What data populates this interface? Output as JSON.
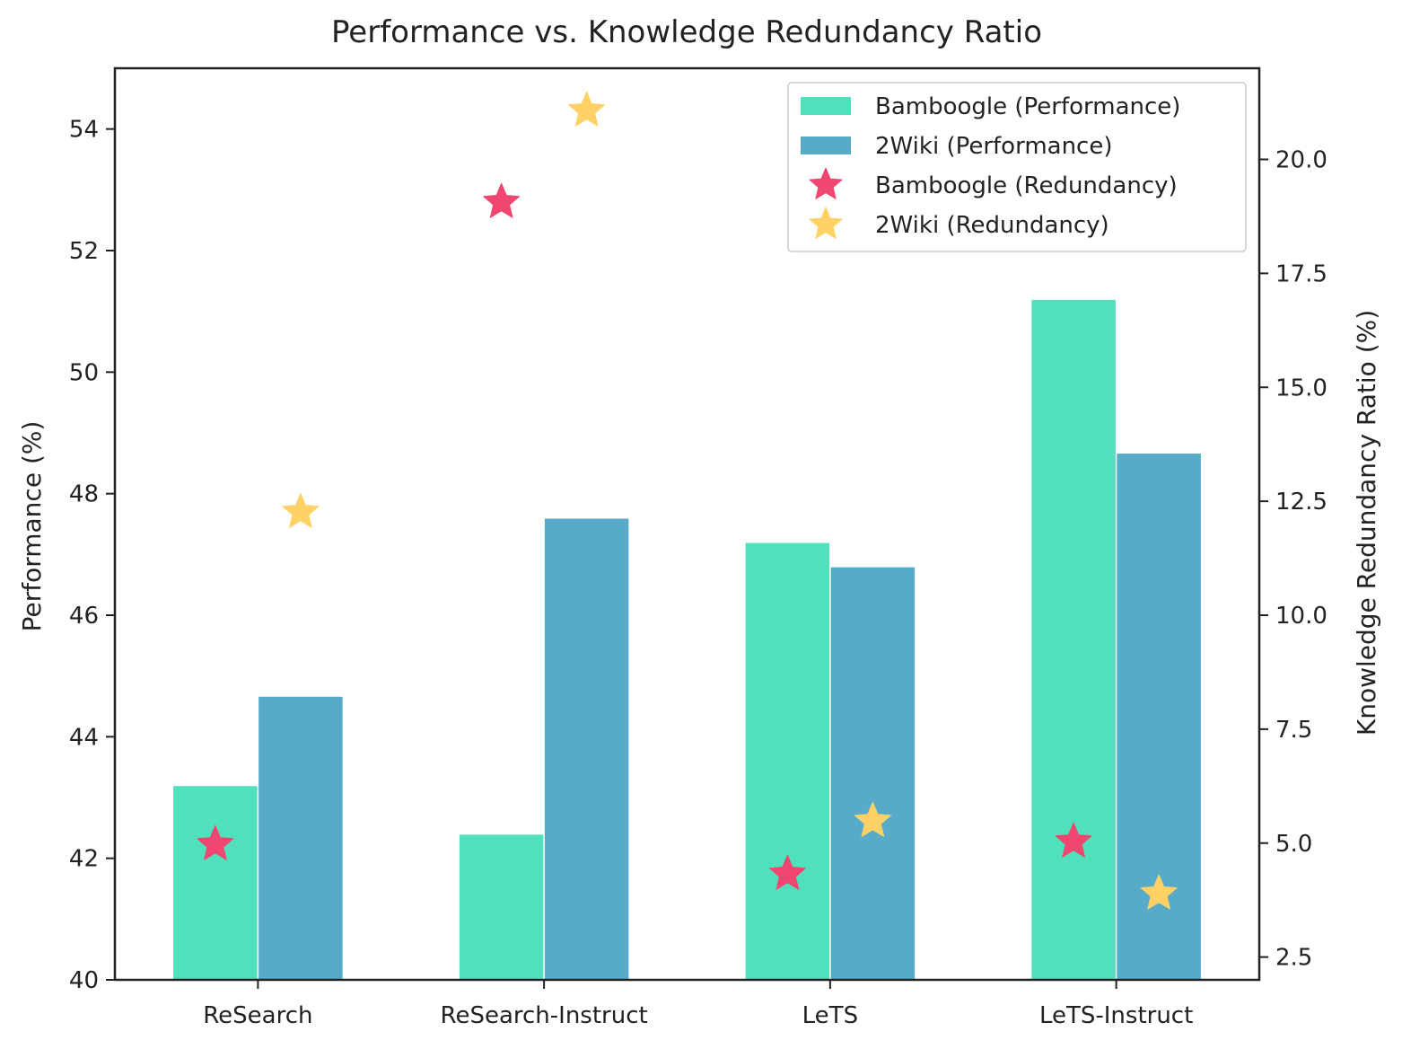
{
  "chart_data": {
    "type": "bar",
    "title": "Performance vs. Knowledge Redundancy Ratio",
    "categories": [
      "ReSearch",
      "ReSearch-Instruct",
      "LeTS",
      "LeTS-Instruct"
    ],
    "ylabel": "Performance (%)",
    "y2label": "Knowledge Redundancy Ratio (%)",
    "ylim": [
      40,
      55
    ],
    "y2lim": [
      2,
      22
    ],
    "yticks": [
      "40",
      "42",
      "44",
      "46",
      "48",
      "50",
      "52",
      "54"
    ],
    "y2ticks": [
      "2.5",
      "5.0",
      "7.5",
      "10.0",
      "12.5",
      "15.0",
      "17.5",
      "20.0"
    ],
    "grid": false,
    "legend_position": "top-right",
    "series": [
      {
        "name": "Bamboogle (Performance)",
        "kind": "bar",
        "axis": "left",
        "color": "#50e0bc",
        "values": [
          43.2,
          42.4,
          47.2,
          51.2
        ]
      },
      {
        "name": "2Wiki (Performance)",
        "kind": "bar",
        "axis": "left",
        "color": "#58abc8",
        "values": [
          44.67,
          47.6,
          46.8,
          48.67
        ]
      },
      {
        "name": "Bamboogle (Redundancy)",
        "kind": "scatter",
        "marker": "star",
        "axis": "right",
        "color": "#ef4770",
        "values": [
          4.97,
          19.06,
          4.32,
          5.03
        ]
      },
      {
        "name": "2Wiki (Redundancy)",
        "kind": "scatter",
        "marker": "star",
        "axis": "right",
        "color": "#ffd166",
        "values": [
          12.26,
          21.07,
          5.48,
          3.89
        ]
      }
    ]
  }
}
